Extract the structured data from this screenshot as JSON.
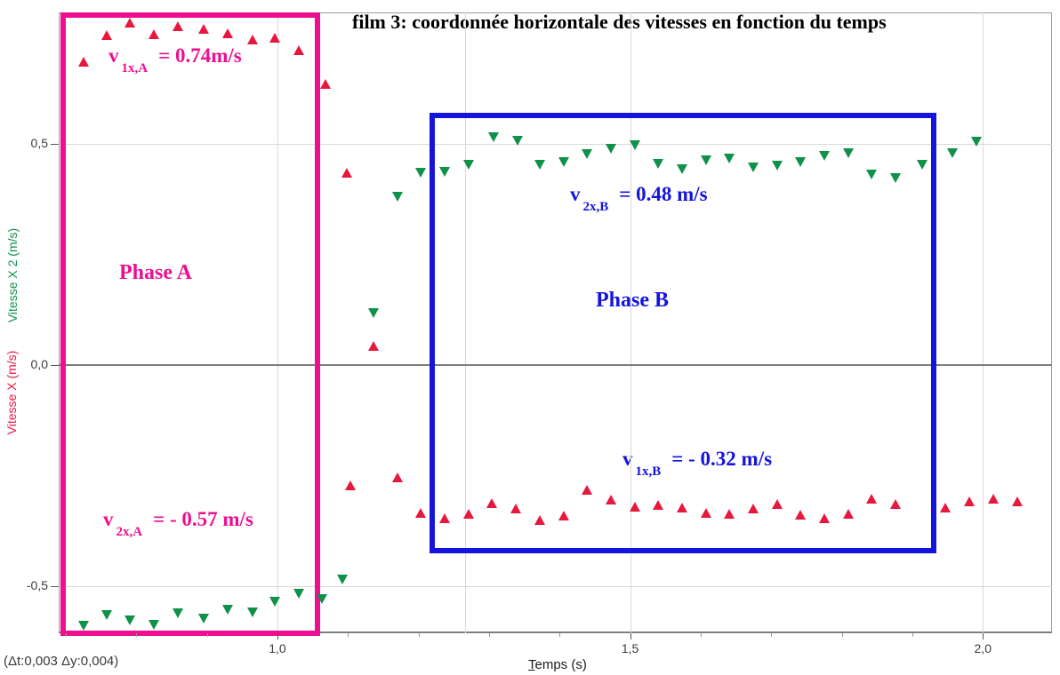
{
  "title": "film 3: coordonnée horizontale des vitesses en fonction du temps",
  "status_bar": "(Δt:0,003 Δy:0,004)",
  "axes": {
    "x_label": "Temps (s)",
    "y_label_red": "Vitesse X (m/s)",
    "y_label_green": "Vitesse X 2 (m/s)",
    "x_ticks": [
      {
        "value": 1.0,
        "label": "1,0"
      },
      {
        "value": 1.5,
        "label": "1,5"
      },
      {
        "value": 2.0,
        "label": "2,0"
      }
    ],
    "y_ticks": [
      {
        "value": 0.5,
        "label": "0,5"
      },
      {
        "value": 0.0,
        "label": "0,0"
      },
      {
        "value": -0.5,
        "label": "-0,5"
      }
    ]
  },
  "annotations": {
    "v1xA": {
      "symbol": "v",
      "subscript": "1x,A",
      "value": "= 0.74m/s"
    },
    "v2xA": {
      "symbol": "v",
      "subscript": "2x,A",
      "value": "= - 0.57 m/s"
    },
    "v2xB": {
      "symbol": "v",
      "subscript": "2x,B",
      "value": "= 0.48 m/s"
    },
    "v1xB": {
      "symbol": "v",
      "subscript": "1x,B",
      "value": "= - 0.32 m/s"
    },
    "phaseA": "Phase A",
    "phaseB": "Phase B"
  },
  "colors": {
    "red_series": "#e8173d",
    "green_series": "#0e9148",
    "magenta": "#ee0f90",
    "blue": "#1414dd",
    "grid_light": "#d9d9d9",
    "zero_line": "#7d7d7d",
    "text_dark": "#3c3c3c"
  },
  "chart_data": {
    "type": "scatter",
    "title": "film 3: coordonnée horizontale des vitesses en fonction du temps",
    "xlabel": "Temps (s)",
    "ylabel_left_red": "Vitesse X (m/s)",
    "ylabel_left_green": "Vitesse X 2 (m/s)",
    "x_range": [
      0.69,
      2.098
    ],
    "y_range": [
      -0.606,
      0.797
    ],
    "x_gridlines": [
      1.0,
      1.266,
      1.5,
      2.0
    ],
    "y_gridlines": [
      0.5,
      -0.5
    ],
    "zero_line": 0.0,
    "x_minor_ticks": [
      0.7,
      0.8,
      0.9,
      1.1,
      1.2,
      1.3,
      1.4,
      1.6,
      1.7,
      1.8,
      1.9
    ],
    "grid": true,
    "legend_position": "none",
    "series": [
      {
        "name": "Vitesse X",
        "marker": "triangle-up",
        "color_key": "red_series",
        "points": [
          [
            0.725,
            0.685
          ],
          [
            0.758,
            0.744
          ],
          [
            0.791,
            0.772
          ],
          [
            0.825,
            0.746
          ],
          [
            0.859,
            0.764
          ],
          [
            0.896,
            0.758
          ],
          [
            0.929,
            0.748
          ],
          [
            0.965,
            0.734
          ],
          [
            0.996,
            0.738
          ],
          [
            1.03,
            0.71
          ],
          [
            1.068,
            0.634
          ],
          [
            1.098,
            0.434
          ],
          [
            1.103,
            -0.272
          ],
          [
            1.136,
            0.042
          ],
          [
            1.17,
            -0.254
          ],
          [
            1.203,
            -0.335
          ],
          [
            1.237,
            -0.347
          ],
          [
            1.271,
            -0.337
          ],
          [
            1.304,
            -0.313
          ],
          [
            1.338,
            -0.325
          ],
          [
            1.372,
            -0.351
          ],
          [
            1.406,
            -0.341
          ],
          [
            1.439,
            -0.283
          ],
          [
            1.473,
            -0.305
          ],
          [
            1.507,
            -0.321
          ],
          [
            1.54,
            -0.317
          ],
          [
            1.574,
            -0.323
          ],
          [
            1.608,
            -0.335
          ],
          [
            1.641,
            -0.337
          ],
          [
            1.675,
            -0.325
          ],
          [
            1.708,
            -0.315
          ],
          [
            1.741,
            -0.339
          ],
          [
            1.775,
            -0.347
          ],
          [
            1.809,
            -0.337
          ],
          [
            1.842,
            -0.303
          ],
          [
            1.876,
            -0.315
          ],
          [
            1.947,
            -0.322
          ],
          [
            1.981,
            -0.308
          ],
          [
            2.015,
            -0.303
          ],
          [
            2.049,
            -0.309
          ]
        ]
      },
      {
        "name": "Vitesse X 2",
        "marker": "triangle-down",
        "color_key": "green_series",
        "points": [
          [
            0.725,
            -0.588
          ],
          [
            0.758,
            -0.563
          ],
          [
            0.791,
            -0.575
          ],
          [
            0.825,
            -0.585
          ],
          [
            0.859,
            -0.559
          ],
          [
            0.896,
            -0.571
          ],
          [
            0.929,
            -0.551
          ],
          [
            0.965,
            -0.557
          ],
          [
            0.996,
            -0.533
          ],
          [
            1.03,
            -0.515
          ],
          [
            1.063,
            -0.527
          ],
          [
            1.092,
            -0.483
          ],
          [
            1.136,
            0.118
          ],
          [
            1.17,
            0.382
          ],
          [
            1.203,
            0.435
          ],
          [
            1.237,
            0.438
          ],
          [
            1.271,
            0.453
          ],
          [
            1.306,
            0.517
          ],
          [
            1.34,
            0.507
          ],
          [
            1.372,
            0.453
          ],
          [
            1.406,
            0.459
          ],
          [
            1.439,
            0.477
          ],
          [
            1.473,
            0.489
          ],
          [
            1.507,
            0.497
          ],
          [
            1.54,
            0.455
          ],
          [
            1.574,
            0.443
          ],
          [
            1.608,
            0.463
          ],
          [
            1.641,
            0.467
          ],
          [
            1.675,
            0.447
          ],
          [
            1.708,
            0.451
          ],
          [
            1.741,
            0.459
          ],
          [
            1.775,
            0.473
          ],
          [
            1.809,
            0.479
          ],
          [
            1.842,
            0.431
          ],
          [
            1.876,
            0.423
          ],
          [
            1.914,
            0.453
          ],
          [
            1.957,
            0.479
          ],
          [
            1.991,
            0.505
          ]
        ]
      }
    ],
    "regions": [
      {
        "label": "Phase A",
        "color_key": "magenta",
        "t_start": 0.692,
        "t_end": 1.061,
        "v_min": -0.612,
        "v_max": 0.797
      },
      {
        "label": "Phase B",
        "color_key": "blue",
        "t_start": 1.216,
        "t_end": 1.934,
        "v_min": -0.425,
        "v_max": 0.57
      }
    ],
    "annotation_values": {
      "v1xA_m_per_s": 0.74,
      "v2xA_m_per_s": -0.57,
      "v2xB_m_per_s": 0.48,
      "v1xB_m_per_s": -0.32
    }
  }
}
